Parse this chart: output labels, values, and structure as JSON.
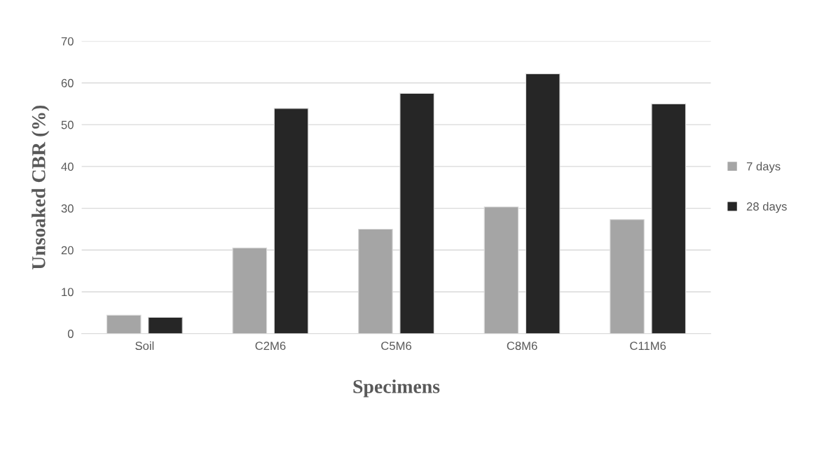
{
  "chart_data": {
    "type": "bar",
    "xlabel": "Specimens",
    "ylabel": "Unsoaked CBR (%)",
    "categories": [
      "Soil",
      "C2M6",
      "C5M6",
      "C8M6",
      "C11M6"
    ],
    "series": [
      {
        "name": "7 days",
        "color": "#a5a5a5",
        "values": [
          4.4,
          20.5,
          25.0,
          30.3,
          27.3
        ]
      },
      {
        "name": "28 days",
        "color": "#262626",
        "values": [
          3.9,
          53.9,
          57.5,
          62.2,
          55.0
        ]
      }
    ],
    "ylim": [
      0,
      70
    ],
    "yticks": [
      0,
      10,
      20,
      30,
      40,
      50,
      60,
      70
    ],
    "grid": "y",
    "legend": "right"
  }
}
